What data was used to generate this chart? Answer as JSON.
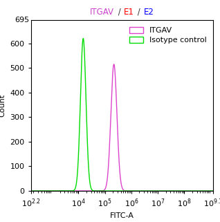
{
  "title_parts": [
    {
      "text": "ITGAV",
      "color": "#CC44CC"
    },
    {
      "text": " / ",
      "color": "#333333"
    },
    {
      "text": "E1",
      "color": "#FF0000"
    },
    {
      "text": " / ",
      "color": "#333333"
    },
    {
      "text": "E2",
      "color": "#0000FF"
    }
  ],
  "xlabel": "FITC-A",
  "ylabel": "Count",
  "xlim_log": [
    2.2,
    9.1
  ],
  "ylim": [
    0,
    695
  ],
  "yticks": [
    0,
    100,
    200,
    300,
    400,
    500,
    600
  ],
  "ytop_label": "695",
  "green_peak_log": 4.18,
  "green_peak_height": 620,
  "green_sigma_log": 0.105,
  "magenta_peak_log": 5.34,
  "magenta_peak_height": 515,
  "magenta_sigma_log": 0.115,
  "green_color": "#00DD00",
  "magenta_color": "#DD44CC",
  "legend_label_itgav": "ITGAV",
  "legend_label_isotype": "Isotype control",
  "bg_color": "#ffffff",
  "font_size": 8,
  "title_font_size": 8.5,
  "xtick_positions": [
    2.2,
    4,
    5,
    6,
    7,
    8,
    9.1
  ],
  "xtick_labels": [
    "10$^{2.2}$",
    "10$^{4}$",
    "10$^{5}$",
    "10$^{6}$",
    "10$^{7}$",
    "10$^{8}$",
    "10$^{9.1}$"
  ]
}
